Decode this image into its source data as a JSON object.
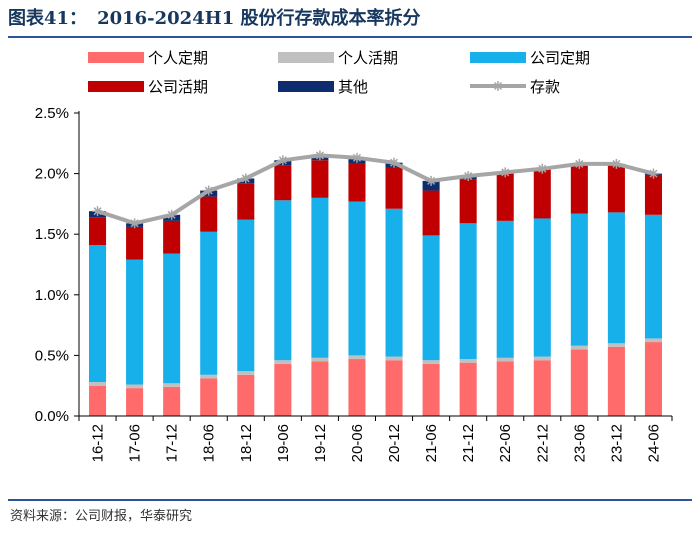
{
  "header": {
    "prefix": "图表41：",
    "title": "2016-2024H1 股份行存款成本率拆分"
  },
  "footer": {
    "source": "资料来源：公司财报，华泰研究"
  },
  "colors": {
    "personal_time": "#ff6b6b",
    "personal_demand": "#c0c0c0",
    "corporate_time": "#18b0ea",
    "corporate_demand": "#c00000",
    "other": "#0e2d6e",
    "total": "#a6a6a6"
  },
  "chart_data": {
    "type": "bar",
    "stacked": true,
    "categories": [
      "16-12",
      "17-06",
      "17-12",
      "18-06",
      "18-12",
      "19-06",
      "19-12",
      "20-06",
      "20-12",
      "21-06",
      "21-12",
      "22-06",
      "22-12",
      "23-06",
      "23-12",
      "24-06"
    ],
    "series": [
      {
        "name": "个人定期",
        "key": "personal_time",
        "values": [
          0.25,
          0.23,
          0.24,
          0.31,
          0.34,
          0.43,
          0.45,
          0.47,
          0.46,
          0.43,
          0.44,
          0.45,
          0.46,
          0.55,
          0.57,
          0.61
        ]
      },
      {
        "name": "个人活期",
        "key": "personal_demand",
        "values": [
          0.03,
          0.03,
          0.03,
          0.03,
          0.03,
          0.03,
          0.03,
          0.03,
          0.03,
          0.03,
          0.03,
          0.03,
          0.03,
          0.03,
          0.03,
          0.03
        ]
      },
      {
        "name": "公司定期",
        "key": "corporate_time",
        "values": [
          1.13,
          1.03,
          1.07,
          1.18,
          1.25,
          1.32,
          1.32,
          1.27,
          1.22,
          1.03,
          1.12,
          1.13,
          1.14,
          1.09,
          1.08,
          1.02
        ]
      },
      {
        "name": "公司活期",
        "key": "corporate_demand",
        "values": [
          0.23,
          0.27,
          0.27,
          0.29,
          0.3,
          0.29,
          0.31,
          0.31,
          0.34,
          0.37,
          0.36,
          0.39,
          0.4,
          0.4,
          0.39,
          0.33
        ]
      },
      {
        "name": "其他",
        "key": "other",
        "values": [
          0.05,
          0.03,
          0.05,
          0.05,
          0.04,
          0.04,
          0.04,
          0.05,
          0.04,
          0.08,
          0.03,
          0.01,
          0.01,
          0.01,
          0.01,
          0.01
        ]
      }
    ],
    "line": {
      "name": "存款",
      "key": "total",
      "values": [
        1.69,
        1.59,
        1.66,
        1.86,
        1.96,
        2.11,
        2.15,
        2.13,
        2.09,
        1.94,
        1.98,
        2.01,
        2.04,
        2.08,
        2.08,
        2.0
      ]
    },
    "ylim": [
      0,
      2.5
    ],
    "yticks": [
      "0.0%",
      "0.5%",
      "1.0%",
      "1.5%",
      "2.0%",
      "2.5%"
    ],
    "ytick_values": [
      0,
      0.5,
      1.0,
      1.5,
      2.0,
      2.5
    ],
    "legend": {
      "placement": "top",
      "entries": [
        "个人定期",
        "个人活期",
        "公司定期",
        "公司活期",
        "其他",
        "存款"
      ]
    },
    "xlabel": "",
    "ylabel": ""
  }
}
